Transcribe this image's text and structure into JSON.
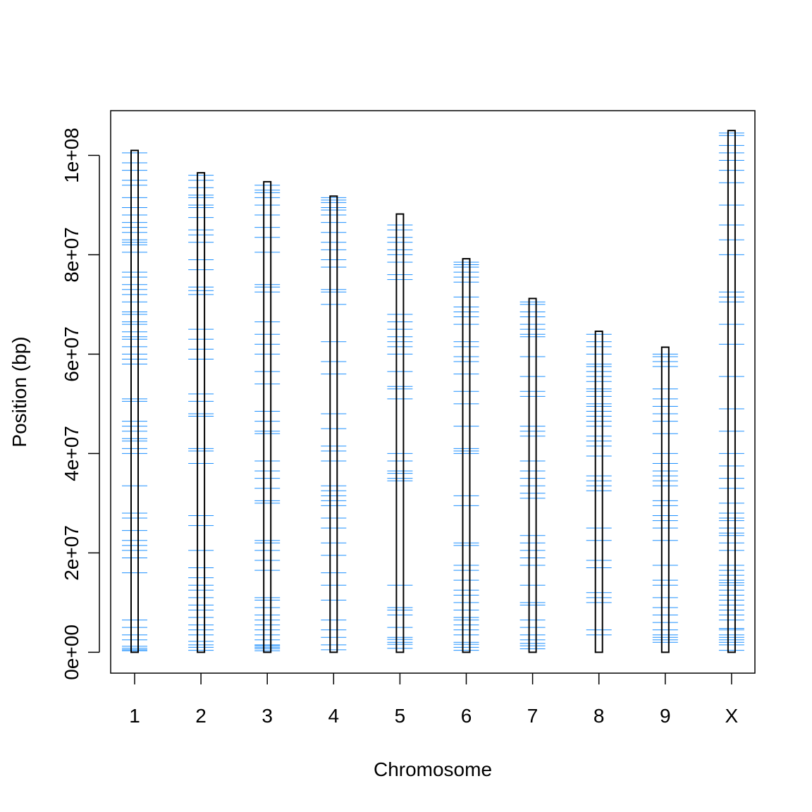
{
  "colors": {
    "marker": "#1E90FF",
    "chrom_outline": "#000000",
    "axis": "#000000",
    "background": "#FFFFFF"
  },
  "chart_data": {
    "type": "chromosome-map",
    "title": "",
    "xlabel": "Chromosome",
    "ylabel": "Position (bp)",
    "ylim": [
      -4200000,
      109000000
    ],
    "yticks": [
      {
        "value": 0,
        "label": "0e+00"
      },
      {
        "value": 20000000,
        "label": "2e+07"
      },
      {
        "value": 40000000,
        "label": "4e+07"
      },
      {
        "value": 60000000,
        "label": "6e+07"
      },
      {
        "value": 80000000,
        "label": "8e+07"
      },
      {
        "value": 100000000,
        "label": "1e+08"
      }
    ],
    "chromosomes": [
      {
        "name": "1",
        "length": 101000000,
        "markers": [
          300000,
          500000,
          800000,
          1200000,
          2500000,
          3500000,
          5000000,
          6500000,
          16000000,
          19000000,
          20500000,
          21500000,
          22500000,
          24500000,
          27000000,
          28000000,
          33500000,
          40000000,
          41000000,
          42500000,
          43000000,
          44500000,
          45500000,
          46500000,
          50500000,
          51000000,
          58000000,
          59000000,
          60000000,
          61500000,
          63000000,
          63500000,
          64500000,
          66000000,
          66500000,
          68000000,
          68500000,
          70500000,
          72000000,
          73000000,
          74000000,
          75500000,
          76500000,
          80500000,
          82000000,
          82500000,
          83000000,
          84500000,
          85500000,
          86500000,
          88000000,
          89500000,
          91500000,
          94000000,
          95000000,
          97000000,
          98500000,
          100500000
        ]
      },
      {
        "name": "2",
        "length": 96500000,
        "markers": [
          400000,
          1000000,
          1500000,
          2200000,
          3500000,
          4500000,
          5500000,
          7000000,
          8500000,
          9500000,
          11000000,
          12500000,
          13500000,
          15000000,
          17000000,
          20500000,
          25500000,
          27500000,
          38000000,
          40500000,
          41000000,
          47500000,
          48000000,
          50500000,
          52000000,
          59000000,
          61000000,
          63000000,
          65000000,
          72000000,
          72800000,
          73500000,
          77000000,
          79000000,
          82500000,
          84000000,
          85000000,
          87500000,
          89500000,
          90000000,
          91500000,
          92000000,
          93500000,
          95000000,
          96000000
        ]
      },
      {
        "name": "3",
        "length": 94700000,
        "markers": [
          300000,
          700000,
          1000000,
          1300000,
          1500000,
          2500000,
          3500000,
          4500000,
          5500000,
          6500000,
          7500000,
          9000000,
          10500000,
          11000000,
          16500000,
          18500000,
          20500000,
          22000000,
          22500000,
          30000000,
          30500000,
          33000000,
          35000000,
          36500000,
          38500000,
          44000000,
          44500000,
          46500000,
          48500000,
          54000000,
          56500000,
          60000000,
          62000000,
          64000000,
          66500000,
          72500000,
          73500000,
          74000000,
          80500000,
          83500000,
          85500000,
          88000000,
          90000000,
          91500000,
          92500000,
          93000000,
          94000000
        ]
      },
      {
        "name": "4",
        "length": 91800000,
        "markers": [
          500000,
          1500000,
          3000000,
          4500000,
          6500000,
          10500000,
          13500000,
          16000000,
          19500000,
          22000000,
          25000000,
          27000000,
          29500000,
          30500000,
          31500000,
          32500000,
          33500000,
          38500000,
          40500000,
          41500000,
          45000000,
          48000000,
          56000000,
          58500000,
          62500000,
          70000000,
          72500000,
          73000000,
          77500000,
          79000000,
          81000000,
          82500000,
          84500000,
          86500000,
          88000000,
          89000000,
          89500000,
          90500000,
          91000000,
          91500000
        ]
      },
      {
        "name": "5",
        "length": 88200000,
        "markers": [
          800000,
          1600000,
          2000000,
          2600000,
          3000000,
          5000000,
          7500000,
          8500000,
          9000000,
          13500000,
          34500000,
          35000000,
          36000000,
          36500000,
          38500000,
          40000000,
          51000000,
          53000000,
          53500000,
          56500000,
          60000000,
          61500000,
          62500000,
          63500000,
          65000000,
          66500000,
          68000000,
          75000000,
          76000000,
          78500000,
          80000000,
          81000000,
          82500000,
          83500000,
          85000000,
          86000000
        ]
      },
      {
        "name": "6",
        "length": 79200000,
        "markers": [
          400000,
          1000000,
          1600000,
          2000000,
          3500000,
          4500000,
          5500000,
          6500000,
          7000000,
          8500000,
          10000000,
          11500000,
          12500000,
          14500000,
          16500000,
          17500000,
          21500000,
          22000000,
          29500000,
          31500000,
          40000000,
          40500000,
          41000000,
          45500000,
          50000000,
          52500000,
          56000000,
          58500000,
          59500000,
          61500000,
          62500000,
          66000000,
          67500000,
          68500000,
          69500000,
          71500000,
          74500000,
          75500000,
          76500000,
          77500000,
          78000000,
          78500000
        ]
      },
      {
        "name": "7",
        "length": 71200000,
        "markers": [
          700000,
          1300000,
          1800000,
          2500000,
          3500000,
          5000000,
          6500000,
          9500000,
          10000000,
          13500000,
          17500000,
          19000000,
          20500000,
          22000000,
          23500000,
          31000000,
          32000000,
          33500000,
          35000000,
          36500000,
          38500000,
          43500000,
          44500000,
          45500000,
          51500000,
          52500000,
          55500000,
          59500000,
          63500000,
          64000000,
          65000000,
          66000000,
          67500000,
          68500000,
          70000000,
          70500000
        ]
      },
      {
        "name": "8",
        "length": 64600000,
        "markers": [
          3500000,
          4500000,
          10000000,
          11000000,
          12000000,
          17000000,
          18500000,
          22500000,
          25000000,
          32500000,
          33500000,
          34500000,
          35500000,
          39500000,
          41500000,
          42500000,
          43500000,
          45500000,
          46500000,
          47500000,
          48500000,
          49500000,
          50000000,
          51500000,
          52500000,
          53000000,
          54500000,
          55500000,
          56500000,
          57500000,
          58000000,
          60000000,
          61500000,
          62500000,
          64000000
        ]
      },
      {
        "name": "9",
        "length": 61400000,
        "markers": [
          2000000,
          2500000,
          3000000,
          3500000,
          4500000,
          6000000,
          7500000,
          9000000,
          11000000,
          13500000,
          14500000,
          17500000,
          22500000,
          25000000,
          26500000,
          27500000,
          29500000,
          30500000,
          33500000,
          34500000,
          35500000,
          36500000,
          38000000,
          40000000,
          44000000,
          46500000,
          48000000,
          49500000,
          51000000,
          53000000,
          57500000,
          58500000,
          59500000,
          60000000
        ]
      },
      {
        "name": "X",
        "length": 105000000,
        "markers": [
          400000,
          1500000,
          2000000,
          2500000,
          3000000,
          3500000,
          4500000,
          4800000,
          6500000,
          7500000,
          8500000,
          9500000,
          10500000,
          11500000,
          12500000,
          13500000,
          14000000,
          14500000,
          15500000,
          16500000,
          17500000,
          20500000,
          22000000,
          23500000,
          24000000,
          25000000,
          26500000,
          27000000,
          28000000,
          30000000,
          33000000,
          35000000,
          37500000,
          40000000,
          44500000,
          49000000,
          55500000,
          62000000,
          66000000,
          70500000,
          71500000,
          72500000,
          80000000,
          83000000,
          86000000,
          90000000,
          94500000,
          97000000,
          99000000,
          100500000,
          102000000,
          104000000,
          104500000
        ]
      }
    ]
  }
}
